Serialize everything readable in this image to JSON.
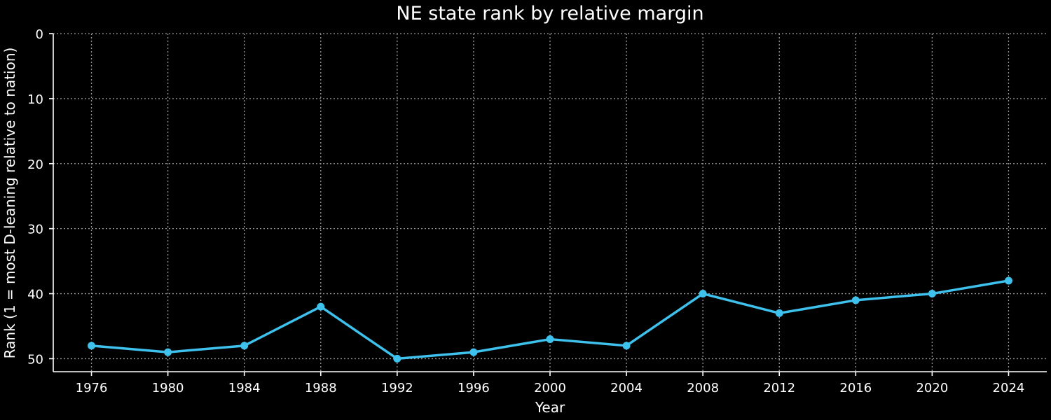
{
  "chart_data": {
    "type": "line",
    "title": "NE state rank by relative margin",
    "xlabel": "Year",
    "ylabel": "Rank (1 = most D-leaning relative to nation)",
    "x": [
      1976,
      1980,
      1984,
      1988,
      1992,
      1996,
      2000,
      2004,
      2008,
      2012,
      2016,
      2020,
      2024
    ],
    "series": [
      {
        "values": [
          48,
          49,
          48,
          42,
          50,
          49,
          47,
          48,
          40,
          43,
          41,
          40,
          38
        ],
        "color": "#3ec1ec"
      }
    ],
    "xlim": [
      1974,
      2026
    ],
    "ylim": [
      0,
      52
    ],
    "y_inverted": true,
    "x_ticks": [
      "1976",
      "1980",
      "1984",
      "1988",
      "1992",
      "1996",
      "2000",
      "2004",
      "2008",
      "2012",
      "2016",
      "2020",
      "2024"
    ],
    "y_ticks": [
      "0",
      "10",
      "20",
      "30",
      "40",
      "50"
    ],
    "grid": true,
    "colors": {
      "background": "#000000",
      "text": "#ffffff",
      "grid": "#9a9a9a",
      "line": "#3ec1ec"
    }
  }
}
